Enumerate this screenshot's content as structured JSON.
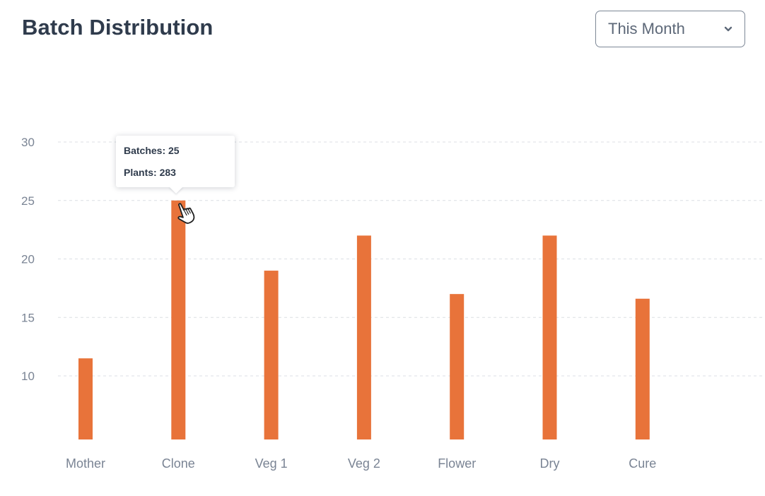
{
  "header": {
    "title": "Batch Distribution",
    "period_select": {
      "value": "This Month",
      "icon": "chevron-down-icon"
    }
  },
  "tooltip": {
    "batches_label": "Batches: 25",
    "plants_label": "Plants: 283"
  },
  "colors": {
    "bar": "#e8733a",
    "grid": "#dcdfe4",
    "tick_text": "#7a8494"
  },
  "cursor_icon": "hand-pointer-icon",
  "chart_data": {
    "type": "bar",
    "categories": [
      "Mother",
      "Clone",
      "Veg 1",
      "Veg 2",
      "Flower",
      "Dry",
      "Cure"
    ],
    "values": [
      11.5,
      25,
      19,
      22,
      17,
      22,
      16.6
    ],
    "yticks": [
      10,
      15,
      20,
      25,
      30
    ],
    "ytick_labels": [
      "10",
      "15",
      "20",
      "25",
      "30"
    ],
    "ylim": [
      5,
      30
    ],
    "grid": true,
    "title": "",
    "xlabel": "",
    "ylabel": ""
  }
}
